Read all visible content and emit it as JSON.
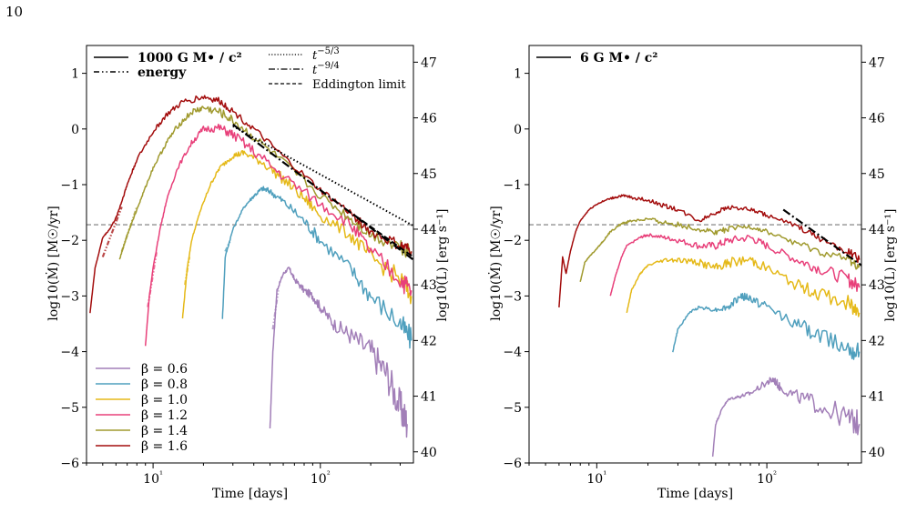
{
  "page_number": "10",
  "chart_data": [
    {
      "type": "line",
      "title": "",
      "xlabel": "Time [days]",
      "ylabel_left": "log10(Ṁ) [M☉/yr]",
      "ylabel_right": "log10(L) [erg s⁻¹]",
      "x_scale": "log",
      "xlim": [
        4,
        360
      ],
      "ylim": [
        -6,
        1.5
      ],
      "ylim_right": [
        39.8,
        47.3
      ],
      "x_ticks": [
        10,
        100
      ],
      "x_tick_labels": [
        "10¹",
        "10²"
      ],
      "y_ticks": [
        -6,
        -5,
        -4,
        -3,
        -2,
        -1,
        0,
        1
      ],
      "y_tick_labels": [
        "−6",
        "−5",
        "−4",
        "−3",
        "−2",
        "−1",
        "0",
        "1"
      ],
      "y2_ticks": [
        40,
        41,
        42,
        43,
        44,
        45,
        46,
        47
      ],
      "y2_tick_labels": [
        "40",
        "41",
        "42",
        "43",
        "44",
        "45",
        "46",
        "47"
      ],
      "eddington_limit_log_mdot": -1.72,
      "legend_top": [
        {
          "label": "1000 G M• / c²",
          "style": "solid"
        },
        {
          "label": "energy",
          "style": "dashdotdot"
        }
      ],
      "legend_powerlaw": [
        {
          "label": "t^{−5/3}",
          "base": "t",
          "exp": "−5/3",
          "style": "dotted"
        },
        {
          "label": "t^{−9/4}",
          "base": "t",
          "exp": "−9/4",
          "style": "dashdot"
        },
        {
          "label": "Eddington limit",
          "style": "dashed"
        }
      ],
      "legend_beta_position": "lower-left",
      "reference_lines": {
        "t_minus_5_3": {
          "x": [
            30,
            360
          ],
          "y": [
            0.05,
            -1.74
          ]
        },
        "t_minus_9_4": {
          "x": [
            30,
            360
          ],
          "y": [
            0.08,
            -2.35
          ]
        },
        "solid_black_fit": {
          "x": [
            160,
            360
          ],
          "y": [
            -1.55,
            -2.3
          ]
        }
      },
      "series": [
        {
          "name": "β = 0.6",
          "beta": "0.6",
          "color": "#a27fb8",
          "x": [
            50,
            52,
            55,
            60,
            65,
            70,
            80,
            90,
            100,
            120,
            150,
            200,
            250,
            300,
            330
          ],
          "y": [
            -5.4,
            -4.0,
            -2.9,
            -2.6,
            -2.5,
            -2.7,
            -2.9,
            -3.0,
            -3.2,
            -3.5,
            -3.7,
            -4.0,
            -4.4,
            -5.0,
            -5.3
          ],
          "noise": 0.18,
          "energy_x": [
            52,
            56
          ],
          "energy_y": [
            -3.6,
            -2.9
          ]
        },
        {
          "name": "β = 0.8",
          "beta": "0.8",
          "color": "#4f9fbd",
          "x": [
            26,
            27,
            30,
            35,
            40,
            45,
            50,
            60,
            80,
            100,
            150,
            200,
            300,
            350
          ],
          "y": [
            -3.4,
            -2.3,
            -1.8,
            -1.4,
            -1.2,
            -1.07,
            -1.12,
            -1.3,
            -1.65,
            -2.0,
            -2.5,
            -3.0,
            -3.5,
            -3.8
          ],
          "noise": 0.12,
          "energy_x": [
            27,
            29
          ],
          "energy_y": [
            -2.2,
            -2.0
          ]
        },
        {
          "name": "β = 1.0",
          "beta": "1.0",
          "color": "#e5b918",
          "x": [
            15,
            16,
            17,
            19,
            22,
            25,
            30,
            35,
            45,
            60,
            80,
            100,
            150,
            200,
            300,
            350
          ],
          "y": [
            -3.4,
            -2.5,
            -2.0,
            -1.5,
            -1.0,
            -0.7,
            -0.48,
            -0.43,
            -0.6,
            -0.9,
            -1.25,
            -1.55,
            -1.9,
            -2.3,
            -2.7,
            -3.0
          ],
          "noise": 0.1,
          "energy_x": [
            15.5,
            16.5
          ],
          "energy_y": [
            -2.8,
            -2.3
          ]
        },
        {
          "name": "β = 1.2",
          "beta": "1.2",
          "color": "#e8407a",
          "x": [
            9.0,
            9.5,
            10,
            11,
            12,
            14,
            17,
            20,
            25,
            30,
            40,
            60,
            100,
            150,
            200,
            300,
            350
          ],
          "y": [
            -3.9,
            -3.0,
            -2.5,
            -1.8,
            -1.3,
            -0.7,
            -0.25,
            0.0,
            0.02,
            -0.1,
            -0.4,
            -0.85,
            -1.35,
            -1.7,
            -2.2,
            -2.7,
            -2.9
          ],
          "noise": 0.1,
          "energy_x": [
            9.3,
            10.5
          ],
          "energy_y": [
            -3.2,
            -2.2
          ]
        },
        {
          "name": "β = 1.4",
          "beta": "1.4",
          "color": "#a09a2e",
          "x": [
            6.3,
            6.6,
            7,
            8,
            9,
            10,
            12,
            14,
            17,
            20,
            25,
            30,
            40,
            60,
            100,
            150,
            200,
            300,
            350
          ],
          "y": [
            -2.35,
            -2.15,
            -1.9,
            -1.45,
            -1.05,
            -0.7,
            -0.25,
            0.05,
            0.3,
            0.38,
            0.3,
            0.15,
            -0.15,
            -0.6,
            -1.2,
            -1.6,
            -1.9,
            -2.1,
            -2.2
          ],
          "noise": 0.08,
          "energy_x": [
            6.5,
            8
          ],
          "energy_y": [
            -2.2,
            -1.4
          ]
        },
        {
          "name": "β = 1.6",
          "beta": "1.6",
          "color": "#a30d0d",
          "x": [
            4.2,
            4.5,
            5,
            5.5,
            6,
            6.5,
            7,
            8,
            10,
            12,
            15,
            20,
            25,
            30,
            40,
            60,
            100,
            150,
            200,
            300,
            350
          ],
          "y": [
            -3.3,
            -2.5,
            -1.95,
            -1.8,
            -1.6,
            -1.3,
            -1.0,
            -0.55,
            -0.05,
            0.25,
            0.48,
            0.58,
            0.5,
            0.32,
            0.0,
            -0.5,
            -1.1,
            -1.5,
            -1.85,
            -2.1,
            -2.2
          ],
          "noise": 0.06,
          "energy_x": [
            5,
            6.5
          ],
          "energy_y": [
            -2.3,
            -1.4
          ]
        }
      ]
    },
    {
      "type": "line",
      "title": "",
      "xlabel": "Time [days]",
      "ylabel_left": "log10(Ṁ) [M☉/yr]",
      "ylabel_right": "log10(L) [erg s⁻¹]",
      "x_scale": "log",
      "xlim": [
        4,
        360
      ],
      "ylim": [
        -6,
        1.5
      ],
      "ylim_right": [
        39.8,
        47.3
      ],
      "x_ticks": [
        10,
        100
      ],
      "x_tick_labels": [
        "10¹",
        "10²"
      ],
      "y_ticks": [
        -6,
        -5,
        -4,
        -3,
        -2,
        -1,
        0,
        1
      ],
      "y_tick_labels": [
        "−6",
        "−5",
        "−4",
        "−3",
        "−2",
        "−1",
        "0",
        "1"
      ],
      "y2_ticks": [
        40,
        41,
        42,
        43,
        44,
        45,
        46,
        47
      ],
      "y2_tick_labels": [
        "40",
        "41",
        "42",
        "43",
        "44",
        "45",
        "46",
        "47"
      ],
      "eddington_limit_log_mdot": -1.72,
      "legend_top": [
        {
          "label": "6 G M• / c²",
          "style": "solid"
        }
      ],
      "reference_lines": {
        "t_minus_9_4": {
          "x": [
            125,
            360
          ],
          "y": [
            -1.45,
            -2.45
          ]
        }
      },
      "series": [
        {
          "name": "β = 0.6",
          "beta": "0.6",
          "color": "#a27fb8",
          "x": [
            48,
            50,
            55,
            60,
            70,
            80,
            100,
            110,
            120,
            150,
            200,
            300,
            350
          ],
          "y": [
            -5.9,
            -5.3,
            -5.0,
            -4.85,
            -4.8,
            -4.75,
            -4.55,
            -4.5,
            -4.65,
            -4.8,
            -4.95,
            -5.2,
            -5.3
          ],
          "noise": 0.12
        },
        {
          "name": "β = 0.8",
          "beta": "0.8",
          "color": "#4f9fbd",
          "x": [
            28,
            30,
            35,
            40,
            50,
            60,
            70,
            80,
            100,
            150,
            200,
            300,
            350
          ],
          "y": [
            -4.0,
            -3.6,
            -3.3,
            -3.2,
            -3.25,
            -3.2,
            -3.0,
            -3.05,
            -3.2,
            -3.5,
            -3.7,
            -3.9,
            -4.0
          ],
          "noise": 0.1
        },
        {
          "name": "β = 1.0",
          "beta": "1.0",
          "color": "#e5b918",
          "x": [
            15,
            16,
            18,
            20,
            25,
            30,
            40,
            50,
            60,
            80,
            100,
            150,
            200,
            300,
            350
          ],
          "y": [
            -3.3,
            -2.9,
            -2.6,
            -2.45,
            -2.35,
            -2.35,
            -2.4,
            -2.5,
            -2.4,
            -2.35,
            -2.5,
            -2.8,
            -2.95,
            -3.15,
            -3.3
          ],
          "noise": 0.09
        },
        {
          "name": "β = 1.2",
          "beta": "1.2",
          "color": "#e8407a",
          "x": [
            12,
            13,
            14,
            15,
            18,
            20,
            25,
            30,
            40,
            50,
            60,
            80,
            100,
            150,
            200,
            300,
            350
          ],
          "y": [
            -3.0,
            -2.6,
            -2.3,
            -2.1,
            -1.95,
            -1.9,
            -1.95,
            -2.0,
            -2.1,
            -2.1,
            -2.0,
            -1.95,
            -2.1,
            -2.35,
            -2.5,
            -2.7,
            -2.85
          ],
          "noise": 0.07
        },
        {
          "name": "β = 1.4",
          "beta": "1.4",
          "color": "#a09a2e",
          "x": [
            8.0,
            8.5,
            9,
            10,
            11,
            12,
            14,
            16,
            20,
            25,
            30,
            40,
            50,
            60,
            80,
            100,
            150,
            200,
            300,
            350
          ],
          "y": [
            -2.75,
            -2.4,
            -2.3,
            -2.15,
            -2.0,
            -1.85,
            -1.7,
            -1.65,
            -1.62,
            -1.68,
            -1.72,
            -1.8,
            -1.85,
            -1.8,
            -1.75,
            -1.85,
            -2.05,
            -2.2,
            -2.35,
            -2.45
          ],
          "noise": 0.05
        },
        {
          "name": "β = 1.6",
          "beta": "1.6",
          "color": "#a30d0d",
          "x": [
            6.0,
            6.3,
            6.6,
            7,
            7.5,
            8,
            9,
            10,
            12,
            14,
            16,
            20,
            25,
            30,
            40,
            50,
            60,
            80,
            100,
            150,
            200,
            300,
            350
          ],
          "y": [
            -3.2,
            -2.3,
            -2.6,
            -2.2,
            -1.85,
            -1.65,
            -1.45,
            -1.35,
            -1.25,
            -1.2,
            -1.23,
            -1.28,
            -1.38,
            -1.45,
            -1.65,
            -1.5,
            -1.4,
            -1.45,
            -1.55,
            -1.75,
            -1.95,
            -2.2,
            -2.35
          ],
          "noise": 0.04
        }
      ]
    }
  ]
}
